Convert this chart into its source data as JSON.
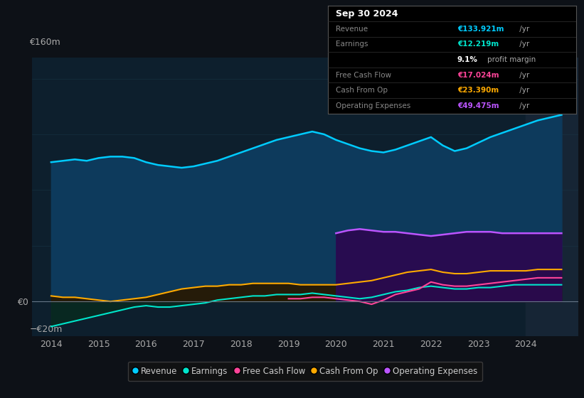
{
  "bg_color": "#0d1117",
  "plot_bg_color": "#0d1f2d",
  "grid_color": "#1a3a4a",
  "years": [
    2014.0,
    2014.25,
    2014.5,
    2014.75,
    2015.0,
    2015.25,
    2015.5,
    2015.75,
    2016.0,
    2016.25,
    2016.5,
    2016.75,
    2017.0,
    2017.25,
    2017.5,
    2017.75,
    2018.0,
    2018.25,
    2018.5,
    2018.75,
    2019.0,
    2019.25,
    2019.5,
    2019.75,
    2020.0,
    2020.25,
    2020.5,
    2020.75,
    2021.0,
    2021.25,
    2021.5,
    2021.75,
    2022.0,
    2022.25,
    2022.5,
    2022.75,
    2023.0,
    2023.25,
    2023.5,
    2023.75,
    2024.0,
    2024.25,
    2024.5,
    2024.75
  ],
  "revenue": [
    100,
    101,
    102,
    101,
    103,
    104,
    104,
    103,
    100,
    98,
    97,
    96,
    97,
    99,
    101,
    104,
    107,
    110,
    113,
    116,
    118,
    120,
    122,
    120,
    116,
    113,
    110,
    108,
    107,
    109,
    112,
    115,
    118,
    112,
    108,
    110,
    114,
    118,
    121,
    124,
    127,
    130,
    132,
    134
  ],
  "earnings": [
    -18,
    -16,
    -14,
    -12,
    -10,
    -8,
    -6,
    -4,
    -3,
    -4,
    -4,
    -3,
    -2,
    -1,
    1,
    2,
    3,
    4,
    4,
    5,
    5,
    5,
    6,
    5,
    4,
    3,
    2,
    3,
    5,
    7,
    8,
    10,
    11,
    10,
    9,
    9,
    10,
    10,
    11,
    12,
    12,
    12,
    12,
    12
  ],
  "free_cash_flow": [
    null,
    null,
    null,
    null,
    null,
    null,
    null,
    null,
    null,
    null,
    null,
    null,
    null,
    null,
    null,
    null,
    null,
    null,
    null,
    null,
    2,
    2,
    3,
    3,
    2,
    1,
    0,
    -2,
    1,
    5,
    7,
    9,
    14,
    12,
    11,
    11,
    12,
    13,
    14,
    15,
    16,
    17,
    17,
    17
  ],
  "cash_from_op": [
    4,
    3,
    3,
    2,
    1,
    0,
    1,
    2,
    3,
    5,
    7,
    9,
    10,
    11,
    11,
    12,
    12,
    13,
    13,
    13,
    13,
    12,
    12,
    12,
    12,
    13,
    14,
    15,
    17,
    19,
    21,
    22,
    23,
    21,
    20,
    20,
    21,
    22,
    22,
    22,
    22,
    23,
    23,
    23
  ],
  "op_expenses": [
    null,
    null,
    null,
    null,
    null,
    null,
    null,
    null,
    null,
    null,
    null,
    null,
    null,
    null,
    null,
    null,
    null,
    null,
    null,
    null,
    null,
    null,
    null,
    null,
    49,
    51,
    52,
    51,
    50,
    50,
    49,
    48,
    47,
    48,
    49,
    50,
    50,
    50,
    49,
    49,
    49,
    49,
    49,
    49
  ],
  "revenue_color": "#00ccff",
  "revenue_fill": "#0d3a5c",
  "earnings_color": "#00e5cc",
  "earnings_fill": "#082a20",
  "fcf_color": "#ff4499",
  "cashop_color": "#ffaa00",
  "cashop_fill": "#281800",
  "opex_color": "#bb55ff",
  "opex_fill": "#2a0a50",
  "forecast_start": 2024.0,
  "xmin": 2013.6,
  "xmax": 2025.1,
  "ylim_min": -25,
  "ylim_max": 175,
  "legend_items": [
    {
      "label": "Revenue",
      "color": "#00ccff"
    },
    {
      "label": "Earnings",
      "color": "#00e5cc"
    },
    {
      "label": "Free Cash Flow",
      "color": "#ff4499"
    },
    {
      "label": "Cash From Op",
      "color": "#ffaa00"
    },
    {
      "label": "Operating Expenses",
      "color": "#bb55ff"
    }
  ],
  "tooltip": {
    "date": "Sep 30 2024",
    "rows": [
      {
        "label": "Revenue",
        "value": "€133.921m",
        "suffix": " /yr",
        "value_color": "#00ccff",
        "indent": false
      },
      {
        "label": "Earnings",
        "value": "€12.219m",
        "suffix": " /yr",
        "value_color": "#00e5cc",
        "indent": false
      },
      {
        "label": "",
        "value": "9.1%",
        "suffix": " profit margin",
        "value_color": "#ffffff",
        "indent": true
      },
      {
        "label": "Free Cash Flow",
        "value": "€17.024m",
        "suffix": " /yr",
        "value_color": "#ff4499",
        "indent": false
      },
      {
        "label": "Cash From Op",
        "value": "€23.390m",
        "suffix": " /yr",
        "value_color": "#ffaa00",
        "indent": false
      },
      {
        "label": "Operating Expenses",
        "value": "€49.475m",
        "suffix": " /yr",
        "value_color": "#bb55ff",
        "indent": false
      }
    ]
  }
}
